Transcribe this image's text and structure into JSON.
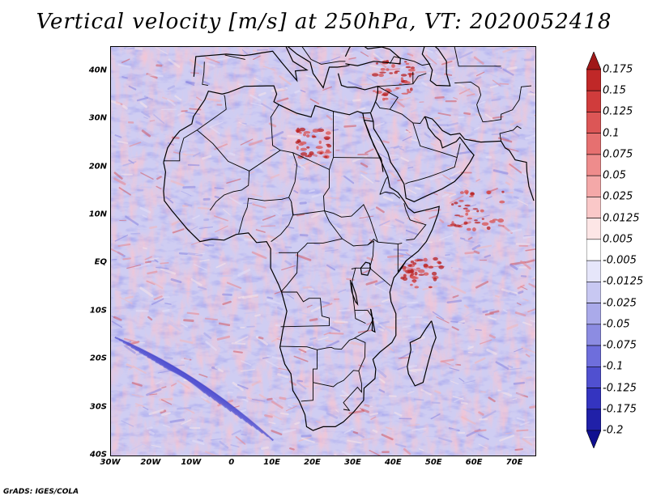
{
  "title": "Vertical velocity [m/s] at 250hPa, VT: 2020052418",
  "credit": "GrADS: IGES/COLA",
  "lat_labels": [
    {
      "text": "40N",
      "value": 40
    },
    {
      "text": "30N",
      "value": 30
    },
    {
      "text": "20N",
      "value": 20
    },
    {
      "text": "10N",
      "value": 10
    },
    {
      "text": "EQ",
      "value": 0
    },
    {
      "text": "10S",
      "value": -10
    },
    {
      "text": "20S",
      "value": -20
    },
    {
      "text": "30S",
      "value": -30
    },
    {
      "text": "40S",
      "value": -40
    }
  ],
  "lon_labels": [
    {
      "text": "30W",
      "value": -30
    },
    {
      "text": "20W",
      "value": -20
    },
    {
      "text": "10W",
      "value": -10
    },
    {
      "text": "0",
      "value": 0
    },
    {
      "text": "10E",
      "value": 10
    },
    {
      "text": "20E",
      "value": 20
    },
    {
      "text": "30E",
      "value": 30
    },
    {
      "text": "40E",
      "value": 40
    },
    {
      "text": "50E",
      "value": 50
    },
    {
      "text": "60E",
      "value": 60
    },
    {
      "text": "70E",
      "value": 70
    }
  ],
  "colorbar": {
    "levels": [
      "0.175",
      "0.15",
      "0.125",
      "0.1",
      "0.075",
      "0.05",
      "0.025",
      "0.0125",
      "0.005",
      "-0.005",
      "-0.0125",
      "-0.025",
      "-0.05",
      "-0.075",
      "-0.1",
      "-0.125",
      "-0.175",
      "-0.2"
    ],
    "colors": [
      "#a01818",
      "#c02828",
      "#d03c3c",
      "#dc5656",
      "#e67070",
      "#ee8c8c",
      "#f4a8a8",
      "#fac8c8",
      "#fde6e6",
      "#ffffff",
      "#e6e6fa",
      "#c8c8f2",
      "#aaaaea",
      "#8c8ce2",
      "#6e6edc",
      "#5050d0",
      "#3434c0",
      "#2020a8",
      "#101090"
    ]
  },
  "map": {
    "lon_range": [
      -30,
      75
    ],
    "lat_range": [
      -40,
      45
    ],
    "ocean_background": "#cfcdf2",
    "coastline_color": "#000000",
    "field_colors": [
      "#8a86e0",
      "#a8a6ea",
      "#c6c4f2",
      "#e4e0f8",
      "#f6e6ea",
      "#f2b8bc",
      "#e88890",
      "#d25a64"
    ]
  }
}
